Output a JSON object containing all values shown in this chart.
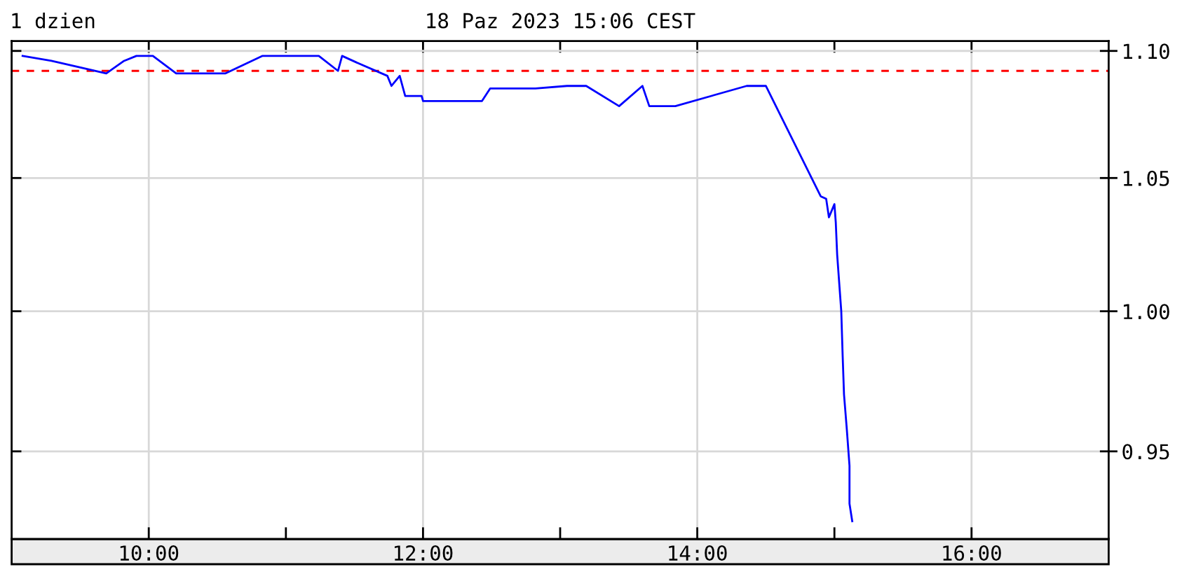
{
  "chart_data": {
    "type": "line",
    "title": "1 dzien",
    "subtitle": "18 Paz 2023 15:06 CEST",
    "x": [
      9.08,
      9.29,
      9.69,
      9.82,
      9.91,
      10.03,
      10.2,
      10.56,
      10.83,
      11.24,
      11.38,
      11.41,
      11.53,
      11.74,
      11.77,
      11.83,
      11.87,
      11.99,
      12.0,
      12.43,
      12.49,
      12.82,
      13.05,
      13.19,
      13.43,
      13.6,
      13.65,
      13.84,
      14.36,
      14.5,
      14.9,
      14.94,
      14.96,
      15.0,
      15.01,
      15.02,
      15.05,
      15.06,
      15.07,
      15.09,
      15.11,
      15.11,
      15.13
    ],
    "series": [
      {
        "color": "#0000ff",
        "values": [
          1.098,
          1.096,
          1.091,
          1.096,
          1.098,
          1.098,
          1.091,
          1.091,
          1.098,
          1.098,
          1.092,
          1.098,
          1.095,
          1.09,
          1.086,
          1.09,
          1.082,
          1.082,
          1.08,
          1.08,
          1.085,
          1.085,
          1.086,
          1.086,
          1.078,
          1.086,
          1.078,
          1.078,
          1.086,
          1.086,
          1.043,
          1.042,
          1.035,
          1.04,
          1.033,
          1.021,
          1.0,
          0.984,
          0.97,
          0.958,
          0.945,
          0.932,
          0.926
        ]
      }
    ],
    "xlim": [
      9,
      17
    ],
    "xticks": [
      {
        "value": 10,
        "label": "10:00"
      },
      {
        "value": 11,
        "label": null
      },
      {
        "value": 12,
        "label": "12:00"
      },
      {
        "value": 13,
        "label": null
      },
      {
        "value": 14,
        "label": "14:00"
      },
      {
        "value": 15,
        "label": null
      },
      {
        "value": 16,
        "label": "16:00"
      }
    ],
    "ylim": [
      0.92,
      1.104
    ],
    "yticks": [
      0.95,
      {
        "value": 1.0,
        "label": "1.00"
      },
      1.05,
      {
        "value": 1.1,
        "label": "1.10"
      }
    ],
    "log": true,
    "grid": true,
    "line_style": "solid",
    "ref_lines": [
      {
        "axis": "y",
        "value": 1.092,
        "color": "#ff0000",
        "line_style": "dashed"
      }
    ]
  }
}
